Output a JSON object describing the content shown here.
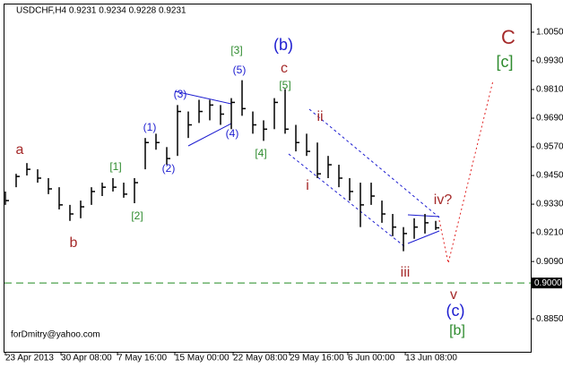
{
  "chart_data": {
    "type": "ohlc",
    "title": "USDCHF,H4  0.9231 0.9234 0.9228 0.9231",
    "watermark": "forDmitry@yahoo.com",
    "color": "#000000",
    "high": [
      0.9383,
      0.9457,
      0.9502,
      0.9476,
      0.9439,
      0.9401,
      0.9327,
      0.9345,
      0.9401,
      0.942,
      0.9439,
      0.942,
      0.9439,
      0.9607,
      0.9625,
      0.9569,
      0.9745,
      0.9718,
      0.9767,
      0.9767,
      0.9745,
      0.9774,
      0.9849,
      0.9718,
      0.9681,
      0.9774,
      0.9812,
      0.9662,
      0.9625,
      0.9588,
      0.9532,
      0.9495,
      0.9439,
      0.942,
      0.942,
      0.9345,
      0.9289,
      0.9234,
      0.9271,
      0.9289,
      0.926
    ],
    "low": [
      0.9327,
      0.9401,
      0.945,
      0.942,
      0.9372,
      0.9308,
      0.926,
      0.9271,
      0.9327,
      0.9364,
      0.9383,
      0.9357,
      0.9334,
      0.9476,
      0.9558,
      0.9495,
      0.9532,
      0.9607,
      0.967,
      0.9681,
      0.9662,
      0.9644,
      0.97,
      0.9625,
      0.9595,
      0.9644,
      0.9625,
      0.9551,
      0.9532,
      0.9439,
      0.9439,
      0.9401,
      0.9345,
      0.9234,
      0.9327,
      0.9252,
      0.9196,
      0.9133,
      0.9185,
      0.9207,
      0.9222
    ],
    "close": [
      0.9345,
      0.9446,
      0.9476,
      0.9439,
      0.9394,
      0.9327,
      0.9289,
      0.9319,
      0.9383,
      0.9401,
      0.9401,
      0.9372,
      0.942,
      0.9588,
      0.9588,
      0.9521,
      0.9718,
      0.9662,
      0.9718,
      0.9745,
      0.9707,
      0.9756,
      0.973,
      0.9662,
      0.9644,
      0.9756,
      0.9644,
      0.9588,
      0.9551,
      0.9457,
      0.9495,
      0.9439,
      0.9383,
      0.9327,
      0.9364,
      0.9289,
      0.9234,
      0.9207,
      0.9234,
      0.9252,
      0.9231
    ],
    "xlim": [
      -0.083,
      48.83
    ],
    "xticks": [
      {
        "value": 0,
        "label": "23 Apr 2013"
      },
      {
        "value": 5.17,
        "label": "30 Apr 08:00"
      },
      {
        "value": 10.42,
        "label": "7 May 16:00"
      },
      {
        "value": 15.75,
        "label": "15 May 00:00"
      },
      {
        "value": 21.17,
        "label": "22 May 08:00"
      },
      {
        "value": 26.42,
        "label": "29 May 16:00"
      },
      {
        "value": 31.83,
        "label": "6 Jun 00:00"
      },
      {
        "value": 37.17,
        "label": "13 Jun 08:00"
      }
    ],
    "ylim": [
      0.8712,
      1.0166
    ],
    "yticks": [
      {
        "value": 1.005,
        "label": "1.0050"
      },
      {
        "value": 0.993,
        "label": "0.9930"
      },
      {
        "value": 0.981,
        "label": "0.9810"
      },
      {
        "value": 0.969,
        "label": "0.9690"
      },
      {
        "value": 0.957,
        "label": "0.9570"
      },
      {
        "value": 0.945,
        "label": "0.9450"
      },
      {
        "value": 0.933,
        "label": "0.9330"
      },
      {
        "value": 0.921,
        "label": "0.9210"
      },
      {
        "value": 0.909,
        "label": "0.9090"
      },
      {
        "value": 0.885,
        "label": "0.8850"
      }
    ],
    "hline": {
      "value": 0.9,
      "label": "0.9000",
      "color": "#228b22"
    },
    "annotations": [
      {
        "text": "a",
        "color": "#a52a2a"
      },
      {
        "text": "b",
        "color": "#a52a2a"
      },
      {
        "text": "[1]",
        "color": "#2e8b2e"
      },
      {
        "text": "[2]",
        "color": "#2e8b2e"
      },
      {
        "text": "(1)",
        "color": "#1c1cd0"
      },
      {
        "text": "(2)",
        "color": "#1c1cd0"
      },
      {
        "text": "(3)",
        "color": "#1c1cd0"
      },
      {
        "text": "(4)",
        "color": "#1c1cd0"
      },
      {
        "text": "(5)",
        "color": "#1c1cd0"
      },
      {
        "text": "[3]",
        "color": "#2e8b2e"
      },
      {
        "text": "(b)",
        "color": "#1c1cd0"
      },
      {
        "text": "c",
        "color": "#a52a2a"
      },
      {
        "text": "[5]",
        "color": "#2e8b2e"
      },
      {
        "text": "[4]",
        "color": "#2e8b2e"
      },
      {
        "text": "ii",
        "color": "#a52a2a"
      },
      {
        "text": "i",
        "color": "#a52a2a"
      },
      {
        "text": "iv?",
        "color": "#a52a2a"
      },
      {
        "text": "iii",
        "color": "#a52a2a"
      },
      {
        "text": "v",
        "color": "#a52a2a"
      },
      {
        "text": "(c)",
        "color": "#1c1cd0"
      },
      {
        "text": "[b]",
        "color": "#2e8b2e"
      },
      {
        "text": "C",
        "color": "#a52a2a"
      },
      {
        "text": "[c]",
        "color": "#2e8b2e"
      }
    ]
  }
}
